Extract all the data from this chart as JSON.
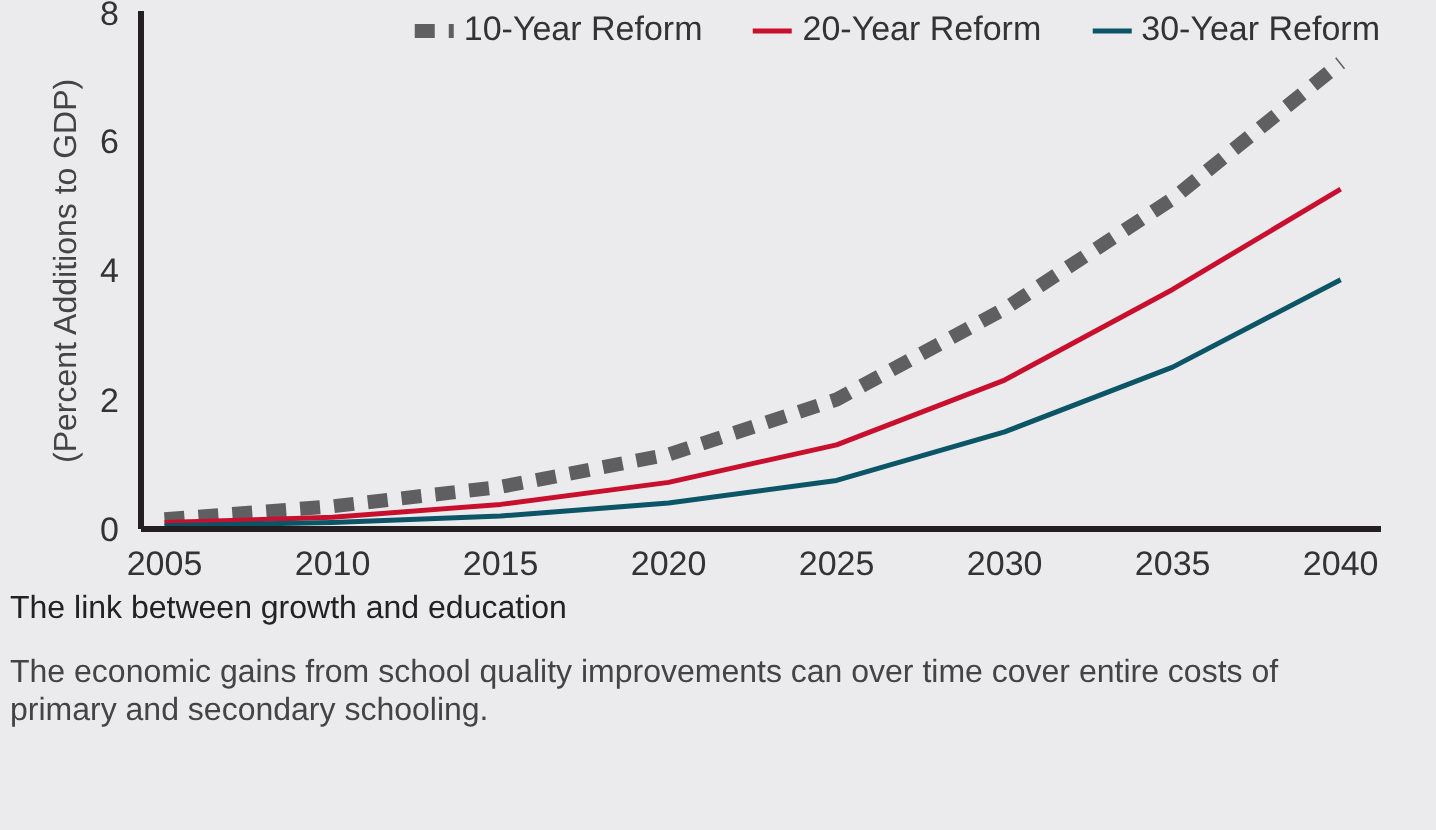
{
  "chart_data": {
    "type": "line",
    "ylabel": "(Percent Additions to GDP)",
    "x": [
      2005,
      2010,
      2015,
      2020,
      2025,
      2030,
      2035,
      2040
    ],
    "xlim": [
      2004.3,
      2041.2
    ],
    "xticks": [
      2005,
      2010,
      2015,
      2020,
      2025,
      2030,
      2035,
      2040
    ],
    "ylim": [
      0,
      8
    ],
    "yticks": [
      0,
      2,
      4,
      6,
      8
    ],
    "grid": false,
    "legend": "top",
    "marker": "none",
    "series": [
      {
        "name": "10-Year Reform",
        "color": "#5f5f61",
        "line_style": "dashed",
        "values": [
          0.15,
          0.35,
          0.65,
          1.15,
          2.0,
          3.4,
          5.1,
          7.2
        ]
      },
      {
        "name": "20-Year Reform",
        "color": "#c8102e",
        "line_style": "solid",
        "values": [
          0.1,
          0.18,
          0.38,
          0.72,
          1.3,
          2.3,
          3.7,
          5.25
        ]
      },
      {
        "name": "30-Year Reform",
        "color": "#0b5566",
        "line_style": "solid",
        "values": [
          0.05,
          0.1,
          0.2,
          0.4,
          0.75,
          1.5,
          2.5,
          3.85
        ]
      }
    ],
    "annotations": [
      "The link between growth and education",
      "The economic gains from school quality improvements can over time cover entire costs of primary and secondary schooling."
    ]
  }
}
